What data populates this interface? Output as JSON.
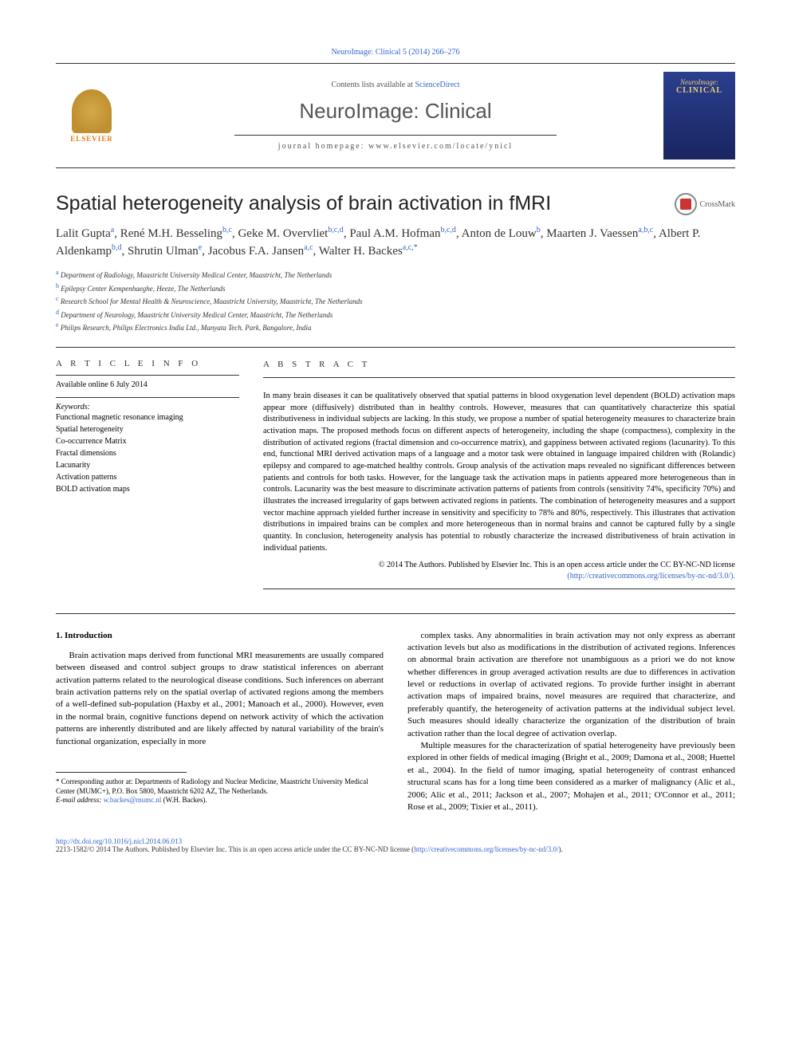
{
  "journal_ref": "NeuroImage: Clinical 5 (2014) 266–276",
  "header": {
    "elsevier_label": "ELSEVIER",
    "contents_prefix": "Contents lists available at ",
    "contents_link": "ScienceDirect",
    "journal_title": "NeuroImage: Clinical",
    "homepage_label": "journal homepage: www.elsevier.com/locate/ynicl",
    "cover_line1": "NeuroImage:",
    "cover_line2": "CLINICAL"
  },
  "article": {
    "title": "Spatial heterogeneity analysis of brain activation in fMRI",
    "crossmark_label": "CrossMark",
    "authors_html": "Lalit Gupta<span class='aff'>a</span>, René M.H. Besseling<span class='aff'>b,c</span>, Geke M. Overvliet<span class='aff'>b,c,d</span>, Paul A.M. Hofman<span class='aff'>b,c,d</span>, Anton de Louw<span class='aff'>b</span>, Maarten J. Vaessen<span class='aff'>a,b,c</span>, Albert P. Aldenkamp<span class='aff'>b,d</span>, Shrutin Ulman<span class='aff'>e</span>, Jacobus F.A. Jansen<span class='aff'>a,c</span>, Walter H. Backes<span class='aff'>a,c,*</span>",
    "affiliations": [
      {
        "label": "a",
        "text": "Department of Radiology, Maastricht University Medical Center, Maastricht, The Netherlands"
      },
      {
        "label": "b",
        "text": "Epilepsy Center Kempenhaeghe, Heeze, The Netherlands"
      },
      {
        "label": "c",
        "text": "Research School for Mental Health & Neuroscience, Maastricht University, Maastricht, The Netherlands"
      },
      {
        "label": "d",
        "text": "Department of Neurology, Maastricht University Medical Center, Maastricht, The Netherlands"
      },
      {
        "label": "e",
        "text": "Philips Research, Philips Electronics India Ltd., Manyata Tech. Park, Bangalore, India"
      }
    ]
  },
  "info": {
    "heading": "a r t i c l e   i n f o",
    "available": "Available online 6 July 2014",
    "keywords_head": "Keywords:",
    "keywords": [
      "Functional magnetic resonance imaging",
      "Spatial heterogeneity",
      "Co-occurrence Matrix",
      "Fractal dimensions",
      "Lacunarity",
      "Activation patterns",
      "BOLD activation maps"
    ]
  },
  "abstract": {
    "heading": "a b s t r a c t",
    "body": "In many brain diseases it can be qualitatively observed that spatial patterns in blood oxygenation level dependent (BOLD) activation maps appear more (diffusively) distributed than in healthy controls. However, measures that can quantitatively characterize this spatial distributiveness in individual subjects are lacking. In this study, we propose a number of spatial heterogeneity measures to characterize brain activation maps. The proposed methods focus on different aspects of heterogeneity, including the shape (compactness), complexity in the distribution of activated regions (fractal dimension and co-occurrence matrix), and gappiness between activated regions (lacunarity). To this end, functional MRI derived activation maps of a language and a motor task were obtained in language impaired children with (Rolandic) epilepsy and compared to age-matched healthy controls. Group analysis of the activation maps revealed no significant differences between patients and controls for both tasks. However, for the language task the activation maps in patients appeared more heterogeneous than in controls. Lacunarity was the best measure to discriminate activation patterns of patients from controls (sensitivity 74%, specificity 70%) and illustrates the increased irregularity of gaps between activated regions in patients. The combination of heterogeneity measures and a support vector machine approach yielded further increase in sensitivity and specificity to 78% and 80%, respectively. This illustrates that activation distributions in impaired brains can be complex and more heterogeneous than in normal brains and cannot be captured fully by a single quantity. In conclusion, heterogeneity analysis has potential to robustly characterize the increased distributiveness of brain activation in individual patients.",
    "copyright_line": "© 2014 The Authors. Published by Elsevier Inc. This is an open access article under the CC BY-NC-ND license",
    "license_url": "(http://creativecommons.org/licenses/by-nc-nd/3.0/)."
  },
  "body": {
    "section_head": "1. Introduction",
    "col1_p1": "Brain activation maps derived from functional MRI measurements are usually compared between diseased and control subject groups to draw statistical inferences on aberrant activation patterns related to the neurological disease conditions. Such inferences on aberrant brain activation patterns rely on the spatial overlap of activated regions among the members of a well-defined sub-population (Haxby et al., 2001; Manoach et al., 2000). However, even in the normal brain, cognitive functions depend on network activity of which the activation patterns are inherently distributed and are likely affected by natural variability of the brain's functional organization, especially in more",
    "col2_p1": "complex tasks. Any abnormalities in brain activation may not only express as aberrant activation levels but also as modifications in the distribution of activated regions. Inferences on abnormal brain activation are therefore not unambiguous as a priori we do not know whether differences in group averaged activation results are due to differences in activation level or reductions in overlap of activated regions. To provide further insight in aberrant activation maps of impaired brains, novel measures are required that characterize, and preferably quantify, the heterogeneity of activation patterns at the individual subject level. Such measures should ideally characterize the organization of the distribution of brain activation rather than the local degree of activation overlap.",
    "col2_p2": "Multiple measures for the characterization of spatial heterogeneity have previously been explored in other fields of medical imaging (Bright et al., 2009; Damona et al., 2008; Huettel et al., 2004). In the field of tumor imaging, spatial heterogeneity of contrast enhanced structural scans has for a long time been considered as a marker of malignancy (Alic et al., 2006; Alic et al., 2011; Jackson et al., 2007; Mohajen et al., 2011; O'Connor et al., 2011; Rose et al., 2009; Tixier et al., 2011)."
  },
  "footnote": {
    "corr": "* Corresponding author at: Departments of Radiology and Nuclear Medicine, Maastricht University Medical Center (MUMC+), P.O. Box 5800, Maastricht 6202 AZ, The Netherlands.",
    "email_label": "E-mail address: ",
    "email": "w.backes@mumc.nl",
    "email_suffix": " (W.H. Backes)."
  },
  "footer": {
    "doi": "http://dx.doi.org/10.1016/j.nicl.2014.06.013",
    "issn_line": "2213-1582/© 2014 The Authors. Published by Elsevier Inc. This is an open access article under the CC BY-NC-ND license (",
    "license_url": "http://creativecommons.org/licenses/by-nc-nd/3.0/",
    "issn_end": ")."
  }
}
